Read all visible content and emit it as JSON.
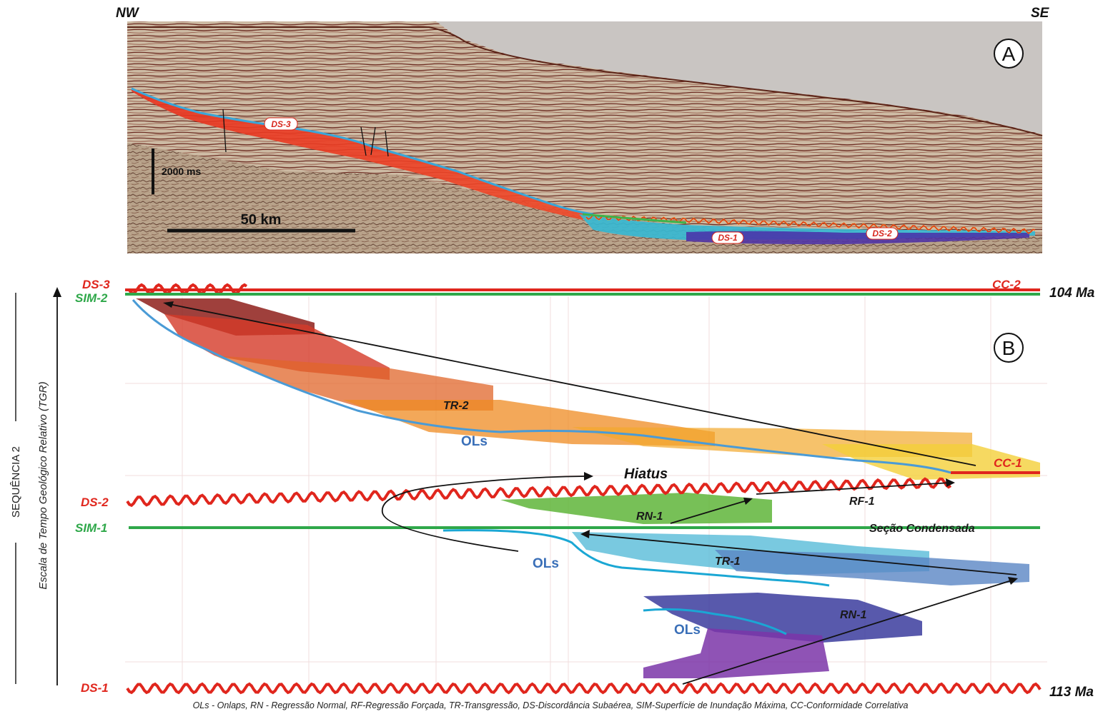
{
  "panel_a": {
    "nw_label": "NW",
    "se_label": "SE",
    "panel_letter": "A",
    "time_scale_label": "2000 ms",
    "distance_scale_label": "50 km",
    "surface_tags": {
      "ds3": "DS-3",
      "ds1": "DS-1",
      "ds2": "DS-2"
    }
  },
  "panel_b": {
    "panel_letter": "B",
    "surfaces": {
      "ds3": "DS-3",
      "sim2": "SIM-2",
      "cc2": "CC-2",
      "cc1": "CC-1",
      "ds2": "DS-2",
      "sim1": "SIM-1",
      "ds1": "DS-1"
    },
    "ages": {
      "top": "104 Ma",
      "bottom": "113 Ma"
    },
    "unit_labels": {
      "tr2": "TR-2",
      "ols_upper": "OLs",
      "hiatus": "Hiatus",
      "rn1_upper": "RN-1",
      "rf1": "RF-1",
      "condensed": "Seção Condensada",
      "ols_middle": "OLs",
      "tr1": "TR-1",
      "rn1_lower": "RN-1",
      "ols_lower": "OLs"
    },
    "y_axis_label": "Escala de Tempo Geológico Relativo (TGR)",
    "sequence_label": "SEQUÊNCIA 2"
  },
  "legend": "OLs - Onlaps, RN - Regressão Normal, RF-Regressão Forçada, TR-Transgressão, DS-Discordância Subaérea, SIM-Superfície de Inundação Máxima, CC-Conformidade Correlativa",
  "colors": {
    "surface_red": "#e0261d",
    "surface_green": "#2fa84a",
    "onlap_blue": "#4a9bd6",
    "seismic_background": "#cbb9a3",
    "water": "#c9c5c2"
  }
}
